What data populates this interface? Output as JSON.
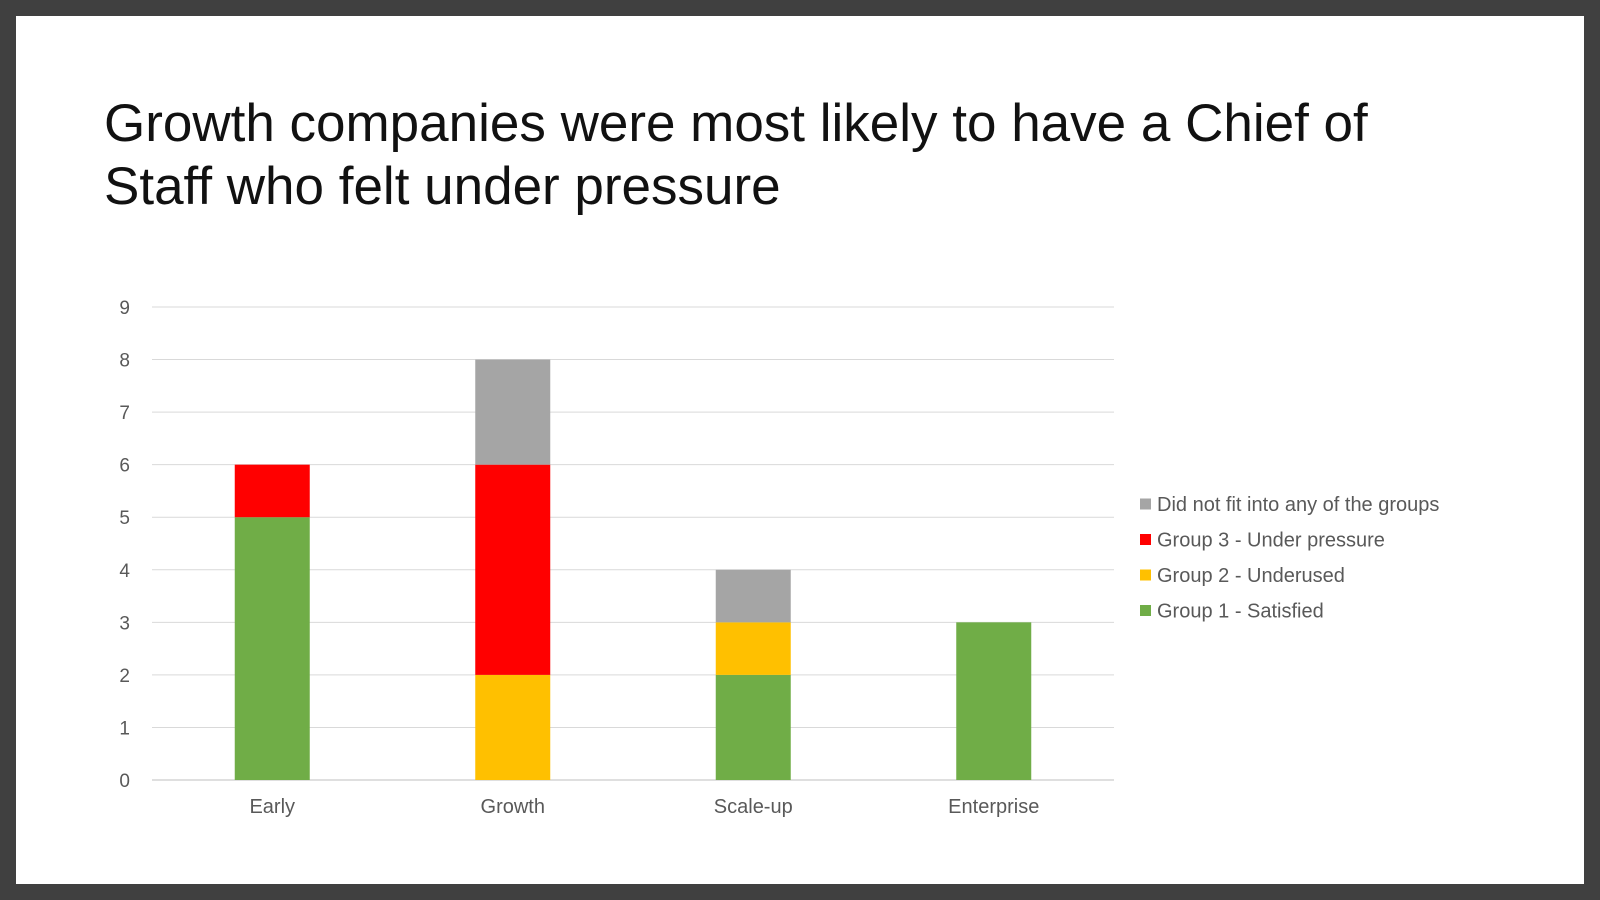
{
  "slide": {
    "title": "Growth companies were most likely to have a Chief of Staff who felt under pressure"
  },
  "chart_data": {
    "type": "bar",
    "stacked": true,
    "title": "Growth companies were most likely to have a Chief of Staff who felt under pressure",
    "xlabel": "",
    "ylabel": "",
    "categories": [
      "Early",
      "Growth",
      "Scale-up",
      "Enterprise"
    ],
    "series": [
      {
        "name": "Group 1 - Satisfied",
        "color": "#70AD47",
        "values": [
          5,
          0,
          2,
          3
        ]
      },
      {
        "name": "Group 2 - Underused",
        "color": "#FFC000",
        "values": [
          0,
          2,
          1,
          0
        ]
      },
      {
        "name": "Group 3 - Under pressure",
        "color": "#FF0000",
        "values": [
          1,
          4,
          0,
          0
        ]
      },
      {
        "name": "Did not fit into any of the groups",
        "color": "#A5A5A5",
        "values": [
          0,
          2,
          1,
          0
        ]
      }
    ],
    "ylim": [
      0,
      9
    ],
    "yticks": [
      0,
      1,
      2,
      3,
      4,
      5,
      6,
      7,
      8,
      9
    ],
    "grid": true,
    "legend_position": "right",
    "legend_order": [
      "Did not fit into any of the groups",
      "Group 3 - Under pressure",
      "Group 2 - Underused",
      "Group 1 - Satisfied"
    ]
  }
}
